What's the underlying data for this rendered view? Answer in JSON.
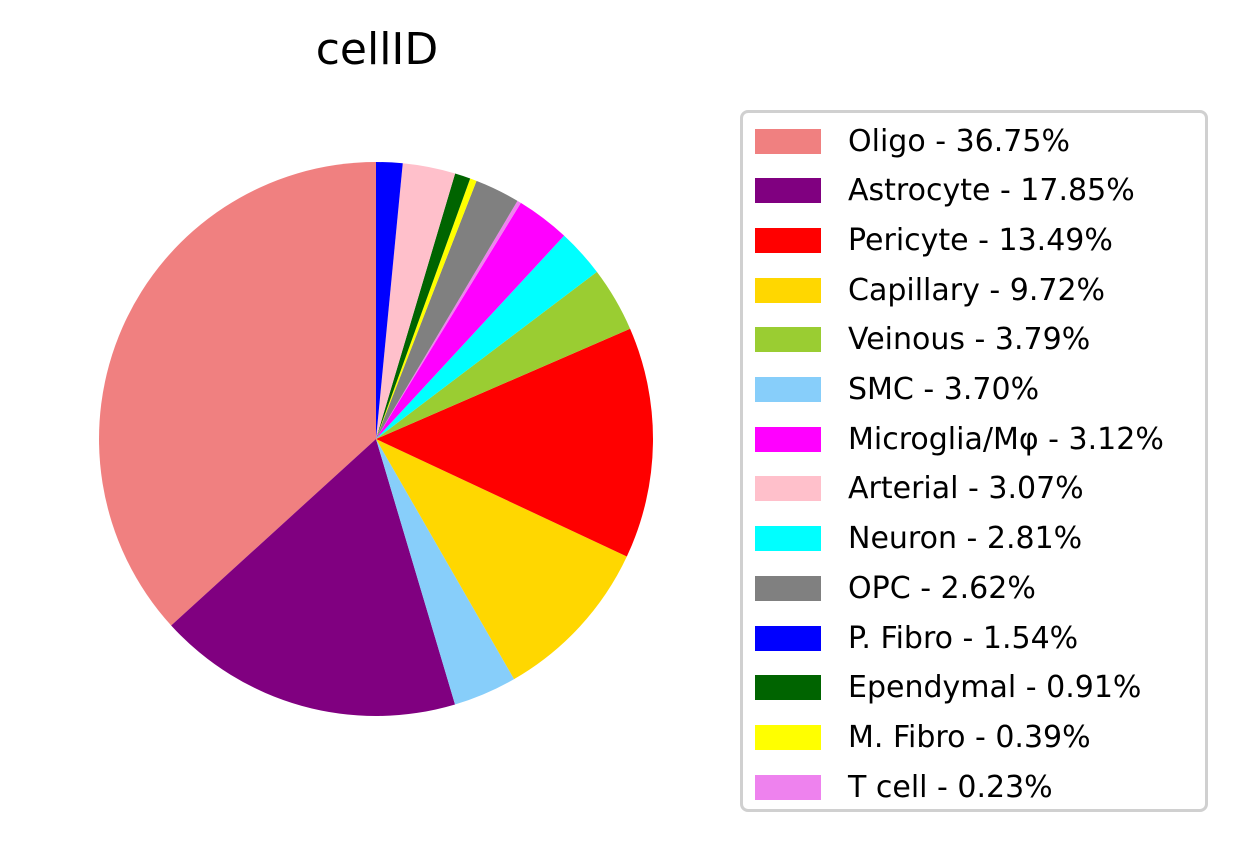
{
  "chart_data": {
    "type": "pie",
    "title": "cellID",
    "legend_position": "right",
    "slices": [
      {
        "label": "Oligo - 36.75%",
        "value": 36.75,
        "color": "#f08080"
      },
      {
        "label": "Astrocyte - 17.85%",
        "value": 17.85,
        "color": "#800080"
      },
      {
        "label": "Pericyte - 13.49%",
        "value": 13.49,
        "color": "#ff0000"
      },
      {
        "label": "Capillary - 9.72%",
        "value": 9.72,
        "color": "#ffd700"
      },
      {
        "label": "Veinous - 3.79%",
        "value": 3.79,
        "color": "#9acd32"
      },
      {
        "label": "SMC - 3.70%",
        "value": 3.7,
        "color": "#87cefa"
      },
      {
        "label": "Microglia/Mφ - 3.12%",
        "value": 3.12,
        "color": "#ff00ff"
      },
      {
        "label": "Arterial - 3.07%",
        "value": 3.07,
        "color": "#ffc0cb"
      },
      {
        "label": "Neuron - 2.81%",
        "value": 2.81,
        "color": "#00ffff"
      },
      {
        "label": "OPC - 2.62%",
        "value": 2.62,
        "color": "#808080"
      },
      {
        "label": "P. Fibro - 1.54%",
        "value": 1.54,
        "color": "#0000ff"
      },
      {
        "label": "Ependymal - 0.91%",
        "value": 0.91,
        "color": "#006400"
      },
      {
        "label": "M. Fibro - 0.39%",
        "value": 0.39,
        "color": "#ffff00"
      },
      {
        "label": "T cell - 0.23%",
        "value": 0.23,
        "color": "#ee82ee"
      }
    ],
    "pie_draw_order": [
      "Oligo - 36.75%",
      "Astrocyte - 17.85%",
      "SMC - 3.70%",
      "Capillary - 9.72%",
      "Pericyte - 13.49%",
      "Veinous - 3.79%",
      "Neuron - 2.81%",
      "Microglia/Mφ - 3.12%",
      "T cell - 0.23%",
      "OPC - 2.62%",
      "M. Fibro - 0.39%",
      "Ependymal - 0.91%",
      "Arterial - 3.07%",
      "P. Fibro - 1.54%"
    ]
  }
}
